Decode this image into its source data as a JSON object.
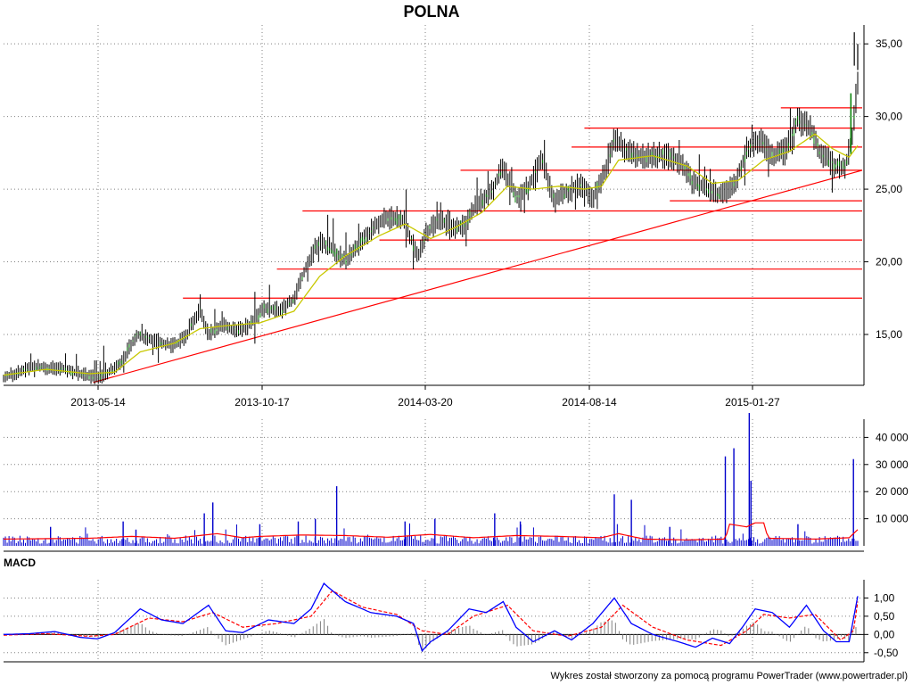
{
  "header": {
    "title": "POLNA"
  },
  "footer": {
    "credit": "Wykres został stworzony za pomocą programu PowerTrader (www.powertrader.pl)"
  },
  "colors": {
    "candle": "#000000",
    "candle_up": "#008000",
    "sma": "#c8c800",
    "support_lines": "#ff0000",
    "volume_bars": "#0000cc",
    "volume_avg": "#ff0000",
    "macd_line": "#0000ff",
    "signal_line": "#ff0000",
    "histogram": "#808080",
    "grid": "#808080"
  },
  "chart_data": [
    {
      "type": "line",
      "panel": "price",
      "title": "POLNA",
      "x_ticks": [
        "2013-05-14",
        "2013-10-17",
        "2014-03-20",
        "2014-08-14",
        "2015-01-27"
      ],
      "y_ticks": [
        "15,00",
        "20,00",
        "25,00",
        "30,00",
        "35,00"
      ],
      "ylim": [
        11.5,
        36.3
      ],
      "grid": true,
      "price_path": [
        [
          0.0,
          12.0
        ],
        [
          0.02,
          12.5
        ],
        [
          0.04,
          12.8
        ],
        [
          0.07,
          12.6
        ],
        [
          0.09,
          12.3
        ],
        [
          0.11,
          12.0
        ],
        [
          0.13,
          12.6
        ],
        [
          0.14,
          13.3
        ],
        [
          0.155,
          15.0
        ],
        [
          0.175,
          14.6
        ],
        [
          0.2,
          14.2
        ],
        [
          0.215,
          15.0
        ],
        [
          0.23,
          16.8
        ],
        [
          0.24,
          15.0
        ],
        [
          0.255,
          15.6
        ],
        [
          0.275,
          15.3
        ],
        [
          0.29,
          15.7
        ],
        [
          0.305,
          16.8
        ],
        [
          0.325,
          16.6
        ],
        [
          0.34,
          17.5
        ],
        [
          0.355,
          19.8
        ],
        [
          0.37,
          21.5
        ],
        [
          0.385,
          20.8
        ],
        [
          0.4,
          20.1
        ],
        [
          0.42,
          21.4
        ],
        [
          0.44,
          22.8
        ],
        [
          0.455,
          23.1
        ],
        [
          0.47,
          22.8
        ],
        [
          0.485,
          20.2
        ],
        [
          0.495,
          22.0
        ],
        [
          0.51,
          23.0
        ],
        [
          0.525,
          22.2
        ],
        [
          0.54,
          22.6
        ],
        [
          0.555,
          24.0
        ],
        [
          0.57,
          24.7
        ],
        [
          0.585,
          26.5
        ],
        [
          0.6,
          24.4
        ],
        [
          0.615,
          25.2
        ],
        [
          0.63,
          27.0
        ],
        [
          0.645,
          24.2
        ],
        [
          0.66,
          24.8
        ],
        [
          0.675,
          25.4
        ],
        [
          0.69,
          24.4
        ],
        [
          0.705,
          26.2
        ],
        [
          0.715,
          28.6
        ],
        [
          0.73,
          27.6
        ],
        [
          0.75,
          27.2
        ],
        [
          0.77,
          27.4
        ],
        [
          0.79,
          27.0
        ],
        [
          0.805,
          25.6
        ],
        [
          0.825,
          25.0
        ],
        [
          0.84,
          24.6
        ],
        [
          0.855,
          25.2
        ],
        [
          0.87,
          27.6
        ],
        [
          0.885,
          28.4
        ],
        [
          0.9,
          27.2
        ],
        [
          0.915,
          27.6
        ],
        [
          0.93,
          29.8
        ],
        [
          0.945,
          29.2
        ],
        [
          0.955,
          27.6
        ],
        [
          0.97,
          26.8
        ],
        [
          0.985,
          26.4
        ],
        [
          0.993,
          28.5
        ],
        [
          1.0,
          32.5
        ]
      ],
      "sma_path": [
        [
          0.0,
          12.2
        ],
        [
          0.05,
          12.6
        ],
        [
          0.1,
          12.3
        ],
        [
          0.13,
          12.4
        ],
        [
          0.16,
          13.8
        ],
        [
          0.2,
          14.4
        ],
        [
          0.23,
          15.4
        ],
        [
          0.26,
          15.6
        ],
        [
          0.3,
          15.8
        ],
        [
          0.34,
          16.6
        ],
        [
          0.37,
          19.0
        ],
        [
          0.4,
          20.4
        ],
        [
          0.44,
          21.8
        ],
        [
          0.47,
          22.6
        ],
        [
          0.5,
          21.6
        ],
        [
          0.53,
          22.4
        ],
        [
          0.56,
          23.4
        ],
        [
          0.59,
          25.2
        ],
        [
          0.62,
          25.0
        ],
        [
          0.65,
          25.2
        ],
        [
          0.68,
          25.0
        ],
        [
          0.7,
          25.2
        ],
        [
          0.72,
          27.0
        ],
        [
          0.76,
          27.3
        ],
        [
          0.8,
          26.6
        ],
        [
          0.83,
          25.4
        ],
        [
          0.86,
          25.6
        ],
        [
          0.89,
          27.0
        ],
        [
          0.92,
          27.6
        ],
        [
          0.95,
          28.8
        ],
        [
          0.97,
          27.8
        ],
        [
          0.99,
          27.2
        ],
        [
          1.0,
          28.0
        ]
      ],
      "horizontal_levels": [
        {
          "price": 30.6,
          "from": 0.91
        },
        {
          "price": 29.2,
          "from": 0.68
        },
        {
          "price": 27.9,
          "from": 0.665
        },
        {
          "price": 26.3,
          "from": 0.535
        },
        {
          "price": 24.2,
          "from": 0.78
        },
        {
          "price": 23.5,
          "from": 0.35
        },
        {
          "price": 21.5,
          "from": 0.44
        },
        {
          "price": 19.5,
          "from": 0.32
        },
        {
          "price": 17.5,
          "from": 0.21
        }
      ],
      "trendline": {
        "from": [
          0.105,
          11.7
        ],
        "to": [
          1.0,
          26.3
        ]
      }
    },
    {
      "type": "bar",
      "panel": "volume",
      "y_ticks": [
        "10 000",
        "20 000",
        "30 000",
        "40 000"
      ],
      "ylim": [
        0,
        50000
      ],
      "spikes": [
        {
          "x": 0.055,
          "value": 7000
        },
        {
          "x": 0.14,
          "value": 9000
        },
        {
          "x": 0.155,
          "value": 6000
        },
        {
          "x": 0.245,
          "value": 16000
        },
        {
          "x": 0.235,
          "value": 12000
        },
        {
          "x": 0.3,
          "value": 8000
        },
        {
          "x": 0.345,
          "value": 9000
        },
        {
          "x": 0.365,
          "value": 10000
        },
        {
          "x": 0.39,
          "value": 22000
        },
        {
          "x": 0.47,
          "value": 9000
        },
        {
          "x": 0.505,
          "value": 10000
        },
        {
          "x": 0.575,
          "value": 12000
        },
        {
          "x": 0.605,
          "value": 9000
        },
        {
          "x": 0.715,
          "value": 19000
        },
        {
          "x": 0.735,
          "value": 17000
        },
        {
          "x": 0.78,
          "value": 7000
        },
        {
          "x": 0.845,
          "value": 33000
        },
        {
          "x": 0.855,
          "value": 36000
        },
        {
          "x": 0.875,
          "value": 24000
        },
        {
          "x": 0.873,
          "value": 49000
        },
        {
          "x": 0.93,
          "value": 8000
        },
        {
          "x": 0.995,
          "value": 32000
        }
      ],
      "avg_path": [
        [
          0.0,
          2500
        ],
        [
          0.1,
          2800
        ],
        [
          0.15,
          3500
        ],
        [
          0.2,
          2800
        ],
        [
          0.25,
          4500
        ],
        [
          0.28,
          3000
        ],
        [
          0.3,
          3500
        ],
        [
          0.35,
          4000
        ],
        [
          0.4,
          3800
        ],
        [
          0.45,
          3200
        ],
        [
          0.5,
          4200
        ],
        [
          0.55,
          3000
        ],
        [
          0.6,
          3800
        ],
        [
          0.65,
          3500
        ],
        [
          0.7,
          3000
        ],
        [
          0.72,
          4500
        ],
        [
          0.75,
          2500
        ],
        [
          0.8,
          2200
        ],
        [
          0.845,
          2500
        ],
        [
          0.85,
          8000
        ],
        [
          0.87,
          7000
        ],
        [
          0.88,
          8500
        ],
        [
          0.89,
          8500
        ],
        [
          0.895,
          2800
        ],
        [
          0.95,
          2500
        ],
        [
          0.99,
          3000
        ],
        [
          1.0,
          6000
        ]
      ]
    },
    {
      "type": "line",
      "panel": "macd",
      "title": "MACD",
      "y_ticks": [
        "-0,50",
        "0,00",
        "0,50",
        "1,00"
      ],
      "ylim": [
        -0.75,
        1.5
      ],
      "macd_path": [
        [
          0.0,
          0.0
        ],
        [
          0.03,
          0.02
        ],
        [
          0.06,
          0.08
        ],
        [
          0.09,
          -0.08
        ],
        [
          0.11,
          -0.12
        ],
        [
          0.13,
          0.05
        ],
        [
          0.16,
          0.7
        ],
        [
          0.185,
          0.4
        ],
        [
          0.21,
          0.3
        ],
        [
          0.24,
          0.8
        ],
        [
          0.26,
          0.1
        ],
        [
          0.28,
          0.05
        ],
        [
          0.31,
          0.4
        ],
        [
          0.34,
          0.3
        ],
        [
          0.36,
          0.7
        ],
        [
          0.375,
          1.4
        ],
        [
          0.4,
          0.9
        ],
        [
          0.43,
          0.6
        ],
        [
          0.46,
          0.5
        ],
        [
          0.48,
          0.3
        ],
        [
          0.49,
          -0.45
        ],
        [
          0.5,
          -0.2
        ],
        [
          0.52,
          0.1
        ],
        [
          0.545,
          0.7
        ],
        [
          0.565,
          0.6
        ],
        [
          0.585,
          0.9
        ],
        [
          0.6,
          0.2
        ],
        [
          0.62,
          -0.2
        ],
        [
          0.645,
          0.1
        ],
        [
          0.665,
          -0.15
        ],
        [
          0.69,
          0.3
        ],
        [
          0.715,
          1.0
        ],
        [
          0.735,
          0.3
        ],
        [
          0.76,
          0.0
        ],
        [
          0.79,
          -0.2
        ],
        [
          0.81,
          -0.35
        ],
        [
          0.83,
          -0.1
        ],
        [
          0.85,
          -0.25
        ],
        [
          0.865,
          0.2
        ],
        [
          0.88,
          0.7
        ],
        [
          0.9,
          0.6
        ],
        [
          0.92,
          0.2
        ],
        [
          0.94,
          0.8
        ],
        [
          0.96,
          0.1
        ],
        [
          0.975,
          -0.2
        ],
        [
          0.99,
          -0.2
        ],
        [
          1.0,
          1.05
        ]
      ],
      "signal_path": [
        [
          0.0,
          -0.02
        ],
        [
          0.05,
          0.02
        ],
        [
          0.1,
          -0.05
        ],
        [
          0.13,
          0.0
        ],
        [
          0.17,
          0.45
        ],
        [
          0.21,
          0.35
        ],
        [
          0.245,
          0.6
        ],
        [
          0.28,
          0.2
        ],
        [
          0.32,
          0.3
        ],
        [
          0.36,
          0.5
        ],
        [
          0.385,
          1.2
        ],
        [
          0.42,
          0.75
        ],
        [
          0.46,
          0.55
        ],
        [
          0.49,
          0.1
        ],
        [
          0.52,
          0.0
        ],
        [
          0.55,
          0.5
        ],
        [
          0.59,
          0.8
        ],
        [
          0.62,
          0.1
        ],
        [
          0.66,
          -0.05
        ],
        [
          0.7,
          0.2
        ],
        [
          0.725,
          0.8
        ],
        [
          0.76,
          0.2
        ],
        [
          0.8,
          -0.15
        ],
        [
          0.84,
          -0.3
        ],
        [
          0.87,
          0.1
        ],
        [
          0.89,
          0.55
        ],
        [
          0.92,
          0.45
        ],
        [
          0.95,
          0.55
        ],
        [
          0.98,
          -0.15
        ],
        [
          0.995,
          0.1
        ],
        [
          1.0,
          0.9
        ]
      ]
    }
  ]
}
